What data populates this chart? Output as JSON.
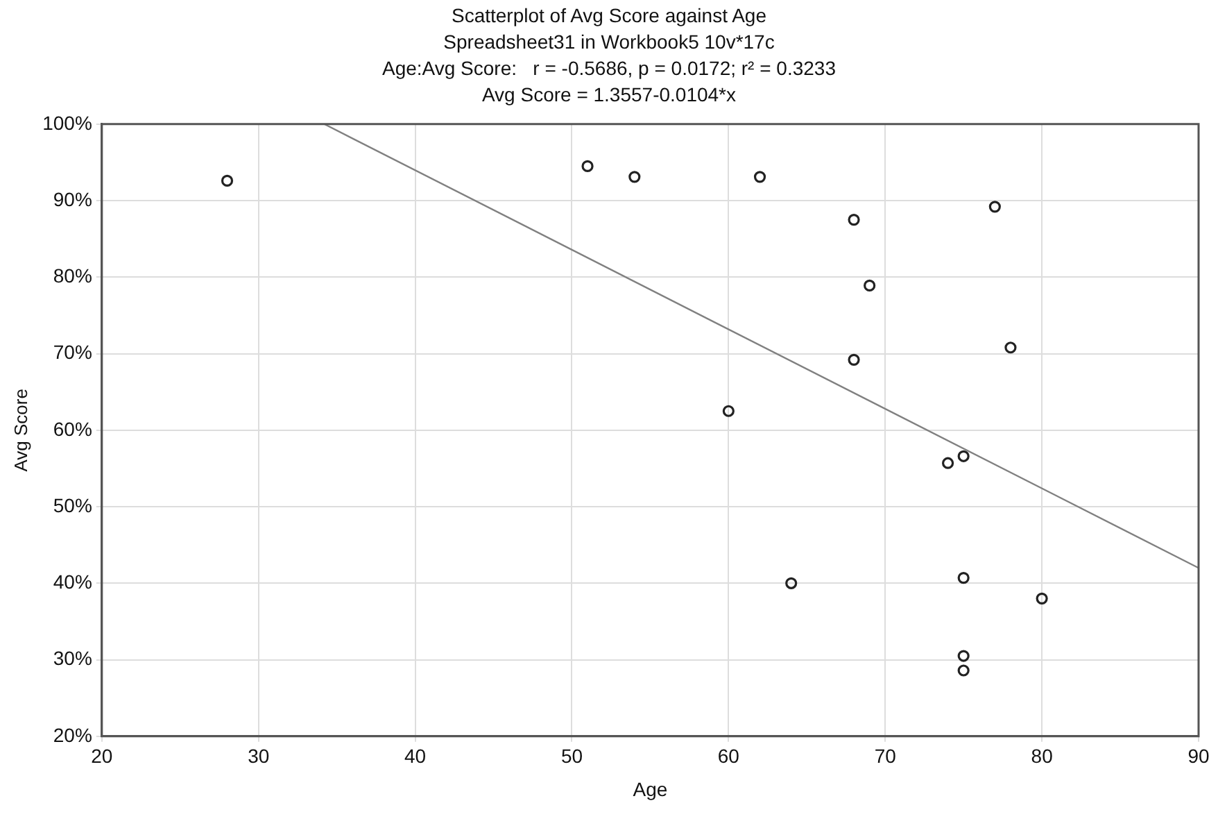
{
  "chart_data": {
    "type": "scatter",
    "title": "Scatterplot of Avg Score against Age",
    "subtitle": "Spreadsheet31 in Workbook5 10v*17c",
    "annotations": [
      "Age:Avg Score:   r = -0.5686, p = 0.0172; r² = 0.3233",
      "Avg Score = 1.3557-0.0104*x"
    ],
    "xlabel": "Age",
    "ylabel": "Avg Score",
    "series": [
      {
        "marker": "circle",
        "color": "#222222",
        "x": [
          28,
          51,
          54,
          62,
          68,
          77,
          69,
          68,
          78,
          60,
          74,
          75,
          64,
          75,
          80,
          75,
          75
        ],
        "values": [
          92.6,
          94.5,
          93.1,
          93.1,
          87.5,
          89.2,
          78.9,
          69.2,
          70.8,
          62.5,
          55.7,
          56.6,
          40,
          40.7,
          38,
          30.5,
          28.6
        ]
      },
      {
        "type": "line",
        "marker": "none",
        "color": "#808080",
        "x": [
          34.2,
          90
        ],
        "values": [
          100,
          42
        ]
      }
    ],
    "xlim": [
      20,
      90
    ],
    "xticks": [
      20,
      30,
      40,
      50,
      60,
      70,
      80,
      90
    ],
    "ylim": [
      20,
      100
    ],
    "yticks": [
      {
        "value": 20,
        "label": "20%"
      },
      {
        "value": 30,
        "label": "30%"
      },
      {
        "value": 40,
        "label": "40%"
      },
      {
        "value": 50,
        "label": "50%"
      },
      {
        "value": 60,
        "label": "60%"
      },
      {
        "value": 70,
        "label": "70%"
      },
      {
        "value": 80,
        "label": "80%"
      },
      {
        "value": 90,
        "label": "90%"
      },
      {
        "value": 100,
        "label": "100%"
      }
    ],
    "grid": true,
    "legend": false
  }
}
